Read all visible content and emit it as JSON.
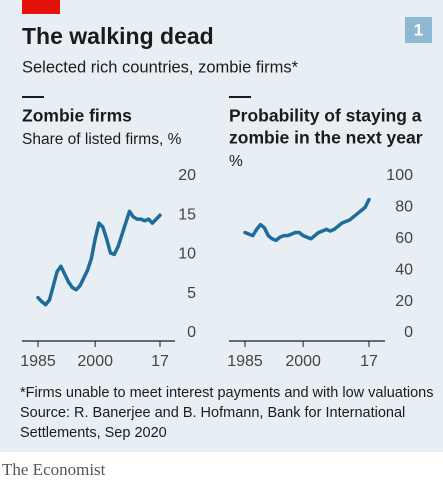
{
  "title": "The walking dead",
  "subtitle": "Selected rich countries, zombie firms*",
  "badge": "1",
  "footnote": "*Firms unable to meet interest payments and with low valuations",
  "source": [
    "Source: R. Banerjee and B. Hofmann, Bank for International",
    "Settlements, Sep 2020"
  ],
  "brand": "The Economist",
  "chart_data": [
    {
      "type": "line",
      "title": [
        "Zombie firms"
      ],
      "subtitle": "Share of listed firms, %",
      "x": [
        1985,
        1986,
        1987,
        1988,
        1989,
        1990,
        1991,
        1992,
        1993,
        1994,
        1995,
        1996,
        1997,
        1998,
        1999,
        2000,
        2001,
        2002,
        2003,
        2004,
        2005,
        2006,
        2007,
        2008,
        2009,
        2010,
        2011,
        2012,
        2013,
        2014,
        2015,
        2016,
        2017
      ],
      "series": [
        {
          "color": "#1f6b99",
          "values": [
            4.5,
            4.0,
            3.6,
            4.2,
            6.0,
            7.8,
            8.5,
            7.5,
            6.5,
            5.8,
            5.5,
            6.0,
            7.0,
            8.0,
            9.5,
            12.0,
            14.0,
            13.5,
            12.0,
            10.2,
            10.0,
            11.0,
            12.5,
            14.0,
            15.5,
            14.8,
            14.5,
            14.5,
            14.3,
            14.5,
            14.0,
            14.5,
            15.0
          ]
        }
      ],
      "xlim": [
        1985,
        2017
      ],
      "xticks": [
        1985,
        2000,
        {
          "value": 2017,
          "label": "17"
        }
      ],
      "ylim": [
        0,
        20
      ],
      "yticks": [
        0,
        5,
        10,
        15,
        20
      ],
      "grid": false
    },
    {
      "type": "line",
      "title": [
        "Probability of staying a",
        "zombie in the next year"
      ],
      "ylabel": "%",
      "x": [
        1985,
        1986,
        1987,
        1988,
        1989,
        1990,
        1991,
        1992,
        1993,
        1994,
        1995,
        1996,
        1997,
        1998,
        1999,
        2000,
        2001,
        2002,
        2003,
        2004,
        2005,
        2006,
        2007,
        2008,
        2009,
        2010,
        2011,
        2012,
        2013,
        2014,
        2015,
        2016,
        2017
      ],
      "series": [
        {
          "color": "#1f6b99",
          "values": [
            64,
            63,
            62,
            66,
            69,
            67,
            62,
            60,
            59,
            61,
            62,
            62,
            63,
            64,
            64,
            62,
            61,
            60,
            62,
            64,
            65,
            66,
            65,
            66,
            68,
            70,
            71,
            72,
            74,
            76,
            78,
            80,
            85
          ]
        }
      ],
      "xlim": [
        1985,
        2017
      ],
      "xticks": [
        1985,
        2000,
        {
          "value": 2017,
          "label": "17"
        }
      ],
      "ylim": [
        0,
        100
      ],
      "yticks": [
        0,
        20,
        40,
        60,
        80,
        100
      ],
      "grid": false
    }
  ]
}
